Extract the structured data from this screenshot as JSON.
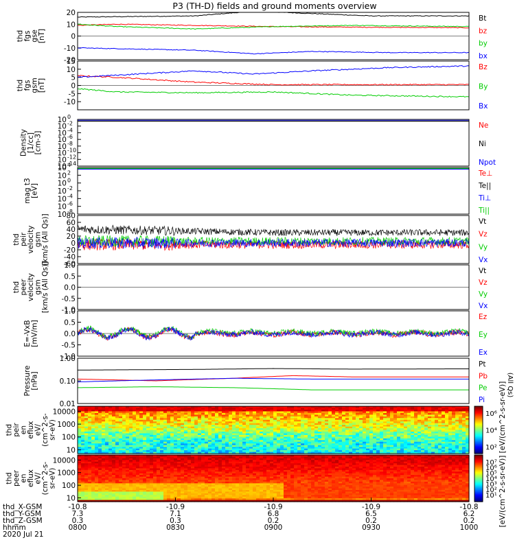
{
  "title": "P3 (TH-D) fields and ground moments overview",
  "chart_data": [
    {
      "id": "fgs",
      "type": "line",
      "ylabel": [
        "thd",
        "fgs",
        "gse",
        "[nT]"
      ],
      "ylim": [
        -20,
        20
      ],
      "yticks": [
        -20,
        -10,
        0,
        10,
        20
      ],
      "series": [
        {
          "name": "Bt",
          "color": "#000000",
          "x": [
            0,
            0.15,
            0.3,
            0.45,
            0.6,
            0.75,
            0.9,
            1.0
          ],
          "values": [
            16,
            16.5,
            17,
            21,
            19,
            17,
            17,
            17
          ]
        },
        {
          "name": "bz",
          "color": "#ff0000",
          "x": [
            0,
            0.1,
            0.3,
            0.5,
            0.7,
            1.0
          ],
          "values": [
            9,
            10,
            9,
            8,
            7.5,
            7
          ]
        },
        {
          "name": "by",
          "color": "#00cc00",
          "x": [
            0,
            0.1,
            0.3,
            0.5,
            0.7,
            1.0
          ],
          "values": [
            10,
            8,
            6,
            8,
            9,
            8
          ]
        },
        {
          "name": "bx",
          "color": "#0000ff",
          "x": [
            0,
            0.15,
            0.3,
            0.45,
            0.6,
            0.8,
            1.0
          ],
          "values": [
            -10,
            -11,
            -12,
            -15,
            -13,
            -14,
            -14
          ]
        }
      ]
    },
    {
      "id": "fgs-gsm",
      "type": "line",
      "ylabel": [
        "thd",
        "fgs",
        "gsm",
        "[nT]"
      ],
      "ylim": [
        -15,
        15
      ],
      "yticks": [
        -10,
        -5,
        0,
        5,
        10,
        15
      ],
      "series": [
        {
          "name": "Bz",
          "color": "#ff0000",
          "x": [
            0,
            0.1,
            0.3,
            0.5,
            0.7,
            1.0
          ],
          "values": [
            6,
            5,
            2,
            0.5,
            0.5,
            0.5
          ]
        },
        {
          "name": "By",
          "color": "#00cc00",
          "x": [
            0,
            0.1,
            0.3,
            0.5,
            0.7,
            1.0
          ],
          "values": [
            -2,
            -4,
            -4.5,
            -4,
            -6,
            -7
          ]
        },
        {
          "name": "Bx",
          "color": "#0000ff",
          "x": [
            0,
            0.15,
            0.3,
            0.45,
            0.6,
            0.8,
            1.0
          ],
          "values": [
            5,
            7,
            9,
            7,
            9,
            11,
            12
          ]
        }
      ]
    },
    {
      "id": "density",
      "type": "line",
      "yscale": "log",
      "ylabel": [
        "Density",
        "[1/cc]",
        "[cm-3]"
      ],
      "ylim_exp": [
        -14,
        0
      ],
      "ytick_exp": [
        0,
        -2,
        -4,
        -6,
        -8,
        -10,
        -12,
        -14
      ],
      "series": [
        {
          "name": "Ne",
          "color": "#ff0000"
        },
        {
          "name": "Ni",
          "color": "#000000"
        },
        {
          "name": "Npot",
          "color": "#0000ff"
        }
      ]
    },
    {
      "id": "temperature",
      "type": "line",
      "yscale": "log",
      "ylabel": [
        "mag t3",
        "[eV]"
      ],
      "ylim_exp": [
        -8,
        4
      ],
      "ytick_exp": [
        4,
        2,
        0,
        -2,
        -4,
        -6,
        -8
      ],
      "series": [
        {
          "name": "Te⊥",
          "color": "#ff0000"
        },
        {
          "name": "Te||",
          "color": "#000000"
        },
        {
          "name": "Ti⊥",
          "color": "#0000ff"
        },
        {
          "name": "Ti||",
          "color": "#00cc00"
        }
      ]
    },
    {
      "id": "peir-velocity",
      "type": "line",
      "ylabel": [
        "thd",
        "peir",
        "velocity",
        "gsm",
        "[km/s (All Qs)]"
      ],
      "ylim": [
        -60,
        80
      ],
      "yticks": [
        -60,
        -40,
        -20,
        0,
        20,
        40,
        60,
        80
      ],
      "series": [
        {
          "name": "Vt",
          "color": "#000000",
          "x": [
            0,
            0.5,
            1.0
          ],
          "values": [
            40,
            30,
            30
          ]
        },
        {
          "name": "Vz",
          "color": "#ff0000",
          "x": [
            0,
            0.5,
            1.0
          ],
          "values": [
            -5,
            -5,
            -5
          ]
        },
        {
          "name": "Vy",
          "color": "#00cc00",
          "x": [
            0,
            0.5,
            1.0
          ],
          "values": [
            5,
            5,
            5
          ]
        },
        {
          "name": "Vx",
          "color": "#0000ff",
          "x": [
            0,
            0.5,
            1.0
          ],
          "values": [
            0,
            0,
            0
          ]
        }
      ]
    },
    {
      "id": "peer-velocity",
      "type": "line",
      "ylabel": [
        "thd",
        "peer",
        "velocity",
        "gsm",
        "[km/s (All Qs)]"
      ],
      "ylim": [
        -1,
        1
      ],
      "yticks": [
        -1.0,
        -0.5,
        0.0,
        0.5,
        1.0
      ],
      "series": [
        {
          "name": "Vt",
          "color": "#000000"
        },
        {
          "name": "Vz",
          "color": "#ff0000"
        },
        {
          "name": "Vy",
          "color": "#00cc00"
        },
        {
          "name": "Vx",
          "color": "#0000ff"
        }
      ]
    },
    {
      "id": "efield",
      "type": "line",
      "ylabel": [
        "E=-VxB",
        "[mV/m]"
      ],
      "ylim": [
        -1,
        1
      ],
      "yticks": [
        -1.0,
        -0.5,
        0.0,
        0.5,
        1.0
      ],
      "series": [
        {
          "name": "Ez",
          "color": "#ff0000",
          "x": [
            0,
            0.5,
            1.0
          ],
          "values": [
            0,
            0,
            0
          ]
        },
        {
          "name": "Ey",
          "color": "#00cc00",
          "x": [
            0,
            0.5,
            1.0
          ],
          "values": [
            0.05,
            0.05,
            0.05
          ]
        },
        {
          "name": "Ex",
          "color": "#0000ff",
          "x": [
            0,
            0.5,
            1.0
          ],
          "values": [
            0,
            0,
            0
          ]
        }
      ]
    },
    {
      "id": "pressure",
      "type": "line",
      "yscale": "log",
      "ylabel": [
        "Pressure",
        "[nPa]"
      ],
      "ylim": [
        0.01,
        1.0
      ],
      "yticks": [
        0.01,
        0.1,
        1.0
      ],
      "ytick_labels": [
        "0.01",
        "0.10",
        "1.00"
      ],
      "side_label": "(All Qs)",
      "series": [
        {
          "name": "Pt",
          "color": "#000000",
          "x": [
            0,
            0.3,
            0.5,
            0.7,
            1.0
          ],
          "values": [
            0.3,
            0.32,
            0.35,
            0.33,
            0.34
          ]
        },
        {
          "name": "Pb",
          "color": "#ff0000",
          "x": [
            0,
            0.2,
            0.4,
            0.55,
            0.7,
            1.0
          ],
          "values": [
            0.12,
            0.1,
            0.13,
            0.17,
            0.15,
            0.15
          ]
        },
        {
          "name": "Pe",
          "color": "#00cc00",
          "x": [
            0,
            0.2,
            0.4,
            0.6,
            1.0
          ],
          "values": [
            0.05,
            0.055,
            0.05,
            0.04,
            0.04
          ]
        },
        {
          "name": "Pi",
          "color": "#0000ff",
          "x": [
            0,
            0.2,
            0.4,
            0.6,
            1.0
          ],
          "values": [
            0.09,
            0.11,
            0.13,
            0.12,
            0.12
          ]
        }
      ]
    },
    {
      "id": "peir-spectrogram",
      "type": "heatmap",
      "yscale": "log",
      "ylabel": [
        "thd",
        "peir",
        "en",
        "eflux",
        "eV/",
        "(cm^2-s-",
        "sr-eV)"
      ],
      "ylim": [
        5,
        25000
      ],
      "yticks": [
        10,
        100,
        1000,
        10000
      ],
      "ytick_labels": [
        "10",
        "100",
        "1000",
        "10000"
      ],
      "colorbar": {
        "ticks": [
          "10⁶",
          "10⁴",
          "10²"
        ]
      }
    },
    {
      "id": "peer-spectrogram",
      "type": "heatmap",
      "yscale": "log",
      "ylabel": [
        "thd",
        "peer",
        "en",
        "eflux",
        "eV/",
        "(cm^2-s-",
        "sr-eV)"
      ],
      "ylim": [
        5,
        25000
      ],
      "yticks": [
        10,
        100,
        1000,
        10000
      ],
      "ytick_labels": [
        "10",
        "100",
        "1000",
        "10000"
      ],
      "colorbar": {
        "ticks": [
          "10⁷",
          "10⁶",
          "10⁵",
          "10⁴",
          "10³",
          "10²",
          "10¹"
        ]
      }
    }
  ],
  "colorbar_label": "[eV/(cm^2-s-sr-eV)] [eV/(cm^2-s-sr-eV)]",
  "xaxis": {
    "row_labels": [
      "thd_X-GSM",
      "thd_Y-GSM",
      "thd_Z-GSM",
      "hhmm",
      "2020 Jul 21"
    ],
    "ticks": [
      {
        "t": 0.0,
        "rows": [
          "-10.8",
          "7.3",
          "0.3",
          "0800"
        ]
      },
      {
        "t": 0.25,
        "rows": [
          "-10.9",
          "7.1",
          "0.3",
          "0830"
        ]
      },
      {
        "t": 0.5,
        "rows": [
          "-10.9",
          "6.8",
          "0.2",
          "0900"
        ]
      },
      {
        "t": 0.75,
        "rows": [
          "-10.9",
          "6.5",
          "0.2",
          "0930"
        ]
      },
      {
        "t": 1.0,
        "rows": [
          "-10.8",
          "6.2",
          "0.2",
          "1000"
        ]
      }
    ]
  }
}
